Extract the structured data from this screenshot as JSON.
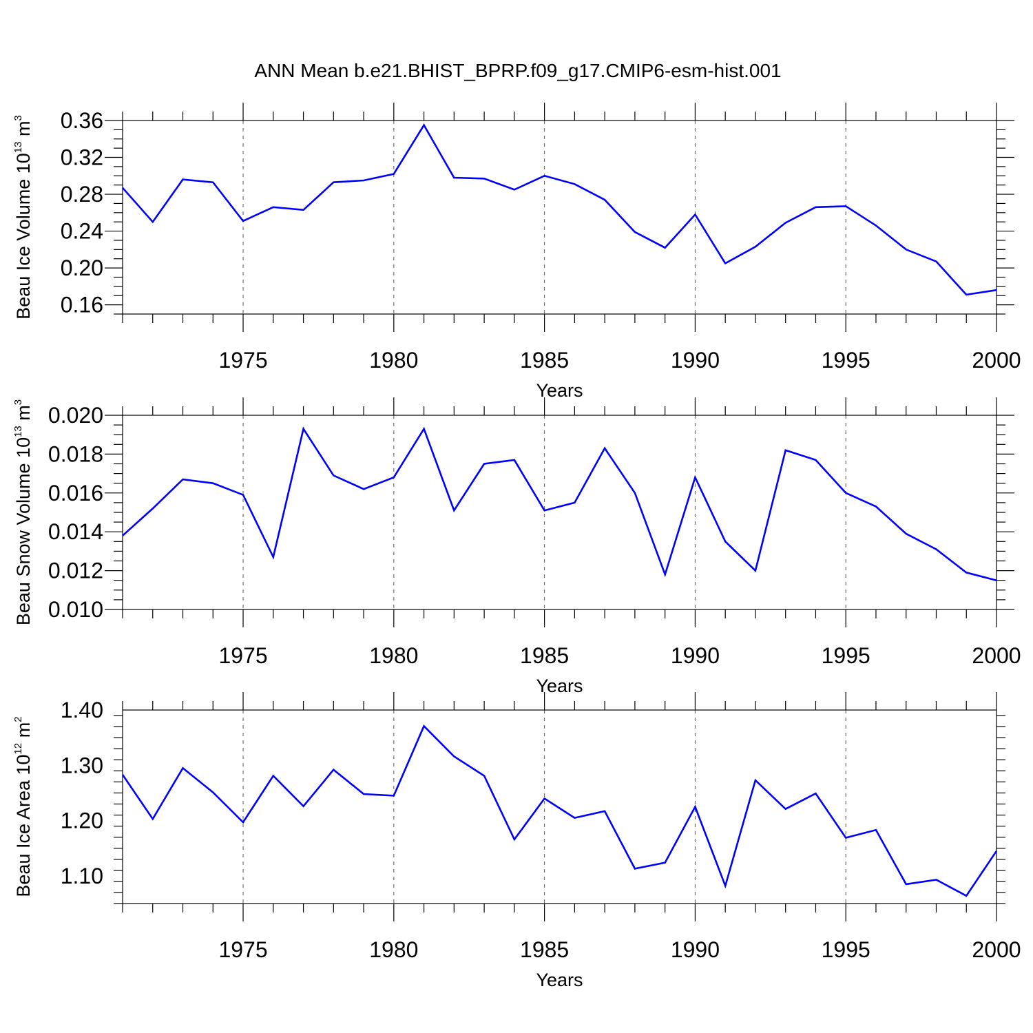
{
  "figure": {
    "title": "ANN Mean b.e21.BHIST_BPRP.f09_g17.CMIP6-esm-hist.001"
  },
  "chart_data": [
    {
      "type": "line",
      "title": "",
      "xlabel": "Years",
      "ylabel": {
        "text": "Beau Ice Volume 10",
        "sup": "13",
        "unit": " m",
        "unit_sup": "3"
      },
      "xlim": [
        1971,
        2000
      ],
      "ylim": [
        0.15,
        0.36
      ],
      "yticks": [
        0.16,
        0.2,
        0.24,
        0.28,
        0.32,
        0.36
      ],
      "ytick_labels": [
        "0.16",
        "0.20",
        "0.24",
        "0.28",
        "0.32",
        "0.36"
      ],
      "y_minor_step": 0.01,
      "xticks": [
        1975,
        1980,
        1985,
        1990,
        1995,
        2000
      ],
      "xtick_labels": [
        "1975",
        "1980",
        "1985",
        "1990",
        "1995",
        "2000"
      ],
      "grid": "vertical dashed at major x ticks",
      "color": "#0000ff",
      "x": [
        1971,
        1972,
        1973,
        1974,
        1975,
        1976,
        1977,
        1978,
        1979,
        1980,
        1981,
        1982,
        1983,
        1984,
        1985,
        1986,
        1987,
        1988,
        1989,
        1990,
        1991,
        1992,
        1993,
        1994,
        1995,
        1996,
        1997,
        1998,
        1999,
        2000
      ],
      "values": [
        0.287,
        0.25,
        0.296,
        0.293,
        0.251,
        0.266,
        0.263,
        0.293,
        0.295,
        0.302,
        0.355,
        0.298,
        0.297,
        0.285,
        0.3,
        0.291,
        0.274,
        0.239,
        0.222,
        0.258,
        0.205,
        0.223,
        0.249,
        0.266,
        0.267,
        0.246,
        0.22,
        0.207,
        0.171,
        0.176
      ]
    },
    {
      "type": "line",
      "title": "",
      "xlabel": "Years",
      "ylabel": {
        "text": "Beau Snow Volume 10",
        "sup": "13",
        "unit": " m",
        "unit_sup": "3"
      },
      "xlim": [
        1971,
        2000
      ],
      "ylim": [
        0.01,
        0.02
      ],
      "yticks": [
        0.01,
        0.012,
        0.014,
        0.016,
        0.018,
        0.02
      ],
      "ytick_labels": [
        "0.010",
        "0.012",
        "0.014",
        "0.016",
        "0.018",
        "0.020"
      ],
      "y_minor_step": 0.0005,
      "xticks": [
        1975,
        1980,
        1985,
        1990,
        1995,
        2000
      ],
      "xtick_labels": [
        "1975",
        "1980",
        "1985",
        "1990",
        "1995",
        "2000"
      ],
      "grid": "vertical dashed at major x ticks",
      "color": "#0000ff",
      "x": [
        1971,
        1972,
        1973,
        1974,
        1975,
        1976,
        1977,
        1978,
        1979,
        1980,
        1981,
        1982,
        1983,
        1984,
        1985,
        1986,
        1987,
        1988,
        1989,
        1990,
        1991,
        1992,
        1993,
        1994,
        1995,
        1996,
        1997,
        1998,
        1999,
        2000
      ],
      "values": [
        0.0138,
        0.0152,
        0.0167,
        0.0165,
        0.0159,
        0.0127,
        0.0193,
        0.0169,
        0.0162,
        0.0168,
        0.0193,
        0.0151,
        0.0175,
        0.0177,
        0.0151,
        0.0155,
        0.0183,
        0.016,
        0.0118,
        0.0168,
        0.0135,
        0.012,
        0.0182,
        0.0177,
        0.016,
        0.0153,
        0.0139,
        0.0131,
        0.0119,
        0.0115
      ]
    },
    {
      "type": "line",
      "title": "",
      "xlabel": "Years",
      "ylabel": {
        "text": "Beau Ice Area 10",
        "sup": "12",
        "unit": " m",
        "unit_sup": "2"
      },
      "xlim": [
        1971,
        2000
      ],
      "ylim": [
        1.05,
        1.4
      ],
      "yticks": [
        1.1,
        1.2,
        1.3,
        1.4
      ],
      "ytick_labels": [
        "1.10",
        "1.20",
        "1.30",
        "1.40"
      ],
      "y_minor_step": 0.02,
      "xticks": [
        1975,
        1980,
        1985,
        1990,
        1995,
        2000
      ],
      "xtick_labels": [
        "1975",
        "1980",
        "1985",
        "1990",
        "1995",
        "2000"
      ],
      "grid": "vertical dashed at major x ticks",
      "color": "#0000ff",
      "x": [
        1971,
        1972,
        1973,
        1974,
        1975,
        1976,
        1977,
        1978,
        1979,
        1980,
        1981,
        1982,
        1983,
        1984,
        1985,
        1986,
        1987,
        1988,
        1989,
        1990,
        1991,
        1992,
        1993,
        1994,
        1995,
        1996,
        1997,
        1998,
        1999,
        2000
      ],
      "values": [
        1.283,
        1.203,
        1.295,
        1.251,
        1.197,
        1.281,
        1.226,
        1.292,
        1.248,
        1.245,
        1.371,
        1.316,
        1.281,
        1.166,
        1.24,
        1.205,
        1.217,
        1.113,
        1.124,
        1.225,
        1.082,
        1.273,
        1.221,
        1.249,
        1.169,
        1.183,
        1.085,
        1.093,
        1.064,
        1.145
      ]
    }
  ]
}
